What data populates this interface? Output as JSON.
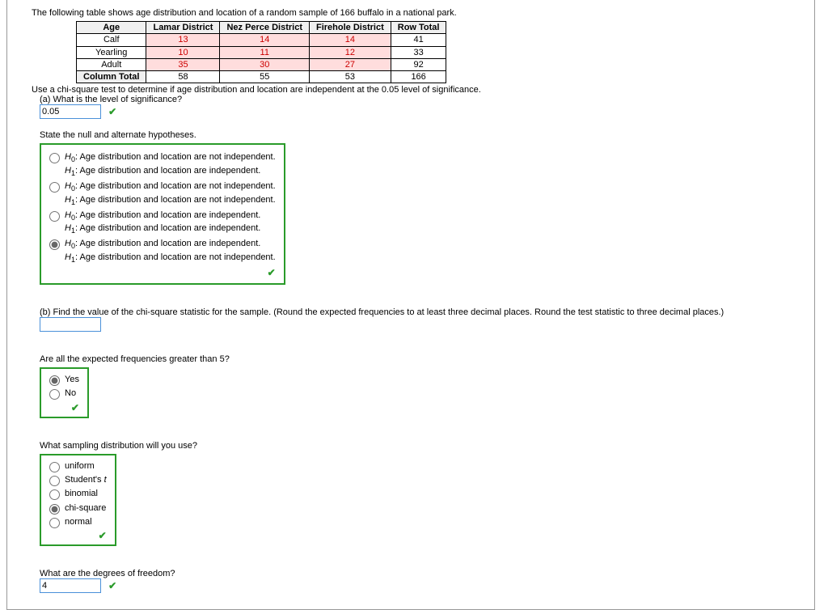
{
  "intro": "The following table shows age distribution and location of a random sample of 166 buffalo in a national park.",
  "table": {
    "headers": [
      "Age",
      "Lamar District",
      "Nez Perce District",
      "Firehole District",
      "Row Total"
    ],
    "rows": [
      {
        "age": "Calf",
        "c1": "13",
        "c2": "14",
        "c3": "14",
        "tot": "41"
      },
      {
        "age": "Yearling",
        "c1": "10",
        "c2": "11",
        "c3": "12",
        "tot": "33"
      },
      {
        "age": "Adult",
        "c1": "35",
        "c2": "30",
        "c3": "27",
        "tot": "92"
      }
    ],
    "foot": {
      "age": "Column Total",
      "c1": "58",
      "c2": "55",
      "c3": "53",
      "tot": "166"
    }
  },
  "directive": "Use a chi-square test to determine if age distribution and location are independent at the 0.05 level of significance.",
  "a": {
    "q": "(a) What is the level of significance?",
    "val": "0.05"
  },
  "hyp": {
    "title": "State the null and alternate hypotheses.",
    "opt1a": "Age distribution and location are not independent.",
    "opt1b": "Age distribution and location are independent.",
    "opt2a": "Age distribution and location are not independent.",
    "opt2b": "Age distribution and location are not independent.",
    "opt3a": "Age distribution and location are independent.",
    "opt3b": "Age distribution and location are independent.",
    "opt4a": "Age distribution and location are independent.",
    "opt4b": "Age distribution and location are not independent."
  },
  "b": {
    "q": "(b) Find the value of the chi-square statistic for the sample. (Round the expected frequencies to at least three decimal places. Round the test statistic to three decimal places.)"
  },
  "freq": {
    "q": "Are all the expected frequencies greater than 5?",
    "yes": "Yes",
    "no": "No"
  },
  "dist": {
    "q": "What sampling distribution will you use?",
    "o1": "uniform",
    "o2": "Student's ",
    "o2i": "t",
    "o3": "binomial",
    "o4": "chi-square",
    "o5": "normal"
  },
  "dof": {
    "q": "What are the degrees of freedom?",
    "val": "4"
  }
}
